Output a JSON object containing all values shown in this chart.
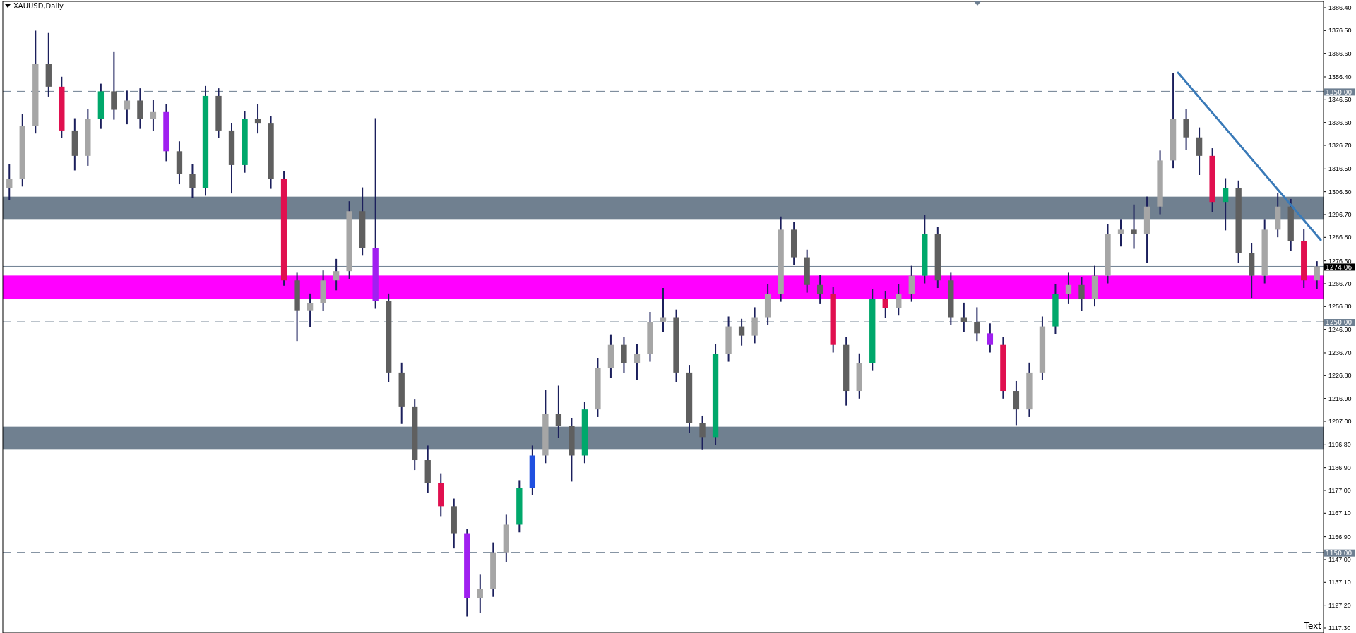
{
  "chart_data": {
    "type": "candlestick",
    "title": "XAUUSD,Daily",
    "annotations": [
      "Text"
    ],
    "categories": [
      null,
      null,
      null,
      null,
      null,
      null,
      null,
      null,
      null,
      null,
      null,
      null,
      null,
      null,
      null,
      null,
      null,
      null,
      null,
      null,
      null,
      null,
      null,
      null,
      null,
      null,
      null,
      null,
      null,
      null,
      null,
      null,
      null,
      null,
      null,
      null,
      null,
      null,
      null,
      null,
      null,
      null,
      null,
      null,
      null,
      null,
      null,
      null,
      null,
      null,
      null,
      null,
      null,
      null,
      null,
      null,
      null,
      null,
      null,
      null,
      null,
      null,
      null,
      null,
      null,
      null,
      null,
      null,
      null,
      null,
      null,
      null,
      null,
      null,
      null,
      null,
      null,
      null,
      null,
      null,
      null,
      null,
      null,
      null,
      null,
      null,
      null,
      null,
      null,
      null,
      null,
      null,
      null,
      null,
      null,
      null,
      null,
      null,
      null,
      null,
      null
    ],
    "ohlc": [
      [
        1308,
        1318,
        1303,
        1312
      ],
      [
        1312,
        1340,
        1309,
        1335
      ],
      [
        1335,
        1376,
        1332,
        1362
      ],
      [
        1362,
        1375,
        1348,
        1352
      ],
      [
        1352,
        1356,
        1330,
        1333
      ],
      [
        1333,
        1338,
        1316,
        1322
      ],
      [
        1322,
        1342,
        1318,
        1338
      ],
      [
        1338,
        1353,
        1334,
        1350
      ],
      [
        1350,
        1367,
        1338,
        1342
      ],
      [
        1342,
        1350,
        1336,
        1346
      ],
      [
        1346,
        1351,
        1334,
        1338
      ],
      [
        1338,
        1346,
        1333,
        1341
      ],
      [
        1341,
        1344,
        1320,
        1324
      ],
      [
        1324,
        1328,
        1310,
        1314
      ],
      [
        1314,
        1318,
        1304,
        1308
      ],
      [
        1308,
        1352,
        1305,
        1348
      ],
      [
        1348,
        1351,
        1330,
        1333
      ],
      [
        1333,
        1336,
        1306,
        1318
      ],
      [
        1318,
        1341,
        1315,
        1338
      ],
      [
        1338,
        1344,
        1332,
        1336
      ],
      [
        1336,
        1339,
        1308,
        1312
      ],
      [
        1312,
        1315,
        1266,
        1268
      ],
      [
        1268,
        1271,
        1242,
        1255
      ],
      [
        1255,
        1262,
        1248,
        1258
      ],
      [
        1258,
        1272,
        1255,
        1268
      ],
      [
        1268,
        1277,
        1264,
        1272
      ],
      [
        1272,
        1302,
        1269,
        1298
      ],
      [
        1298,
        1308,
        1279,
        1282
      ],
      [
        1282,
        1338,
        1256,
        1259
      ],
      [
        1259,
        1262,
        1224,
        1228
      ],
      [
        1228,
        1232,
        1206,
        1213
      ],
      [
        1213,
        1216,
        1186,
        1190
      ],
      [
        1190,
        1196,
        1176,
        1180
      ],
      [
        1180,
        1184,
        1166,
        1170
      ],
      [
        1170,
        1173,
        1152,
        1158
      ],
      [
        1158,
        1160,
        1122.5,
        1130
      ],
      [
        1130,
        1140,
        1124,
        1134
      ],
      [
        1134,
        1154,
        1131,
        1150
      ],
      [
        1150,
        1166,
        1146,
        1162
      ],
      [
        1162,
        1181,
        1159,
        1178
      ],
      [
        1178,
        1196,
        1175,
        1192
      ],
      [
        1192,
        1220,
        1189,
        1210
      ],
      [
        1210,
        1222,
        1200,
        1205
      ],
      [
        1205,
        1208,
        1181,
        1192
      ],
      [
        1192,
        1215,
        1189,
        1212
      ],
      [
        1212,
        1234,
        1209,
        1230
      ],
      [
        1230,
        1244,
        1226,
        1240
      ],
      [
        1240,
        1243,
        1228,
        1232
      ],
      [
        1232,
        1240,
        1225,
        1236
      ],
      [
        1236,
        1254,
        1233,
        1250
      ],
      [
        1250,
        1264.4,
        1246,
        1252
      ],
      [
        1252,
        1255,
        1224,
        1228
      ],
      [
        1228,
        1231,
        1202,
        1206
      ],
      [
        1206,
        1209,
        1195,
        1200
      ],
      [
        1200,
        1240,
        1197,
        1236
      ],
      [
        1236,
        1252,
        1233,
        1248
      ],
      [
        1248,
        1251,
        1240,
        1244
      ],
      [
        1244,
        1256,
        1241,
        1252
      ],
      [
        1252,
        1266,
        1249,
        1262
      ],
      [
        1262,
        1295.4,
        1259,
        1290
      ],
      [
        1290,
        1293,
        1275,
        1278
      ],
      [
        1278,
        1281,
        1263,
        1266
      ],
      [
        1266,
        1270,
        1258,
        1262
      ],
      [
        1262,
        1265,
        1237,
        1240
      ],
      [
        1240,
        1243,
        1214,
        1220
      ],
      [
        1220,
        1236,
        1217,
        1232
      ],
      [
        1232,
        1264,
        1229,
        1260
      ],
      [
        1260,
        1263,
        1252,
        1256
      ],
      [
        1256,
        1266,
        1253,
        1262
      ],
      [
        1262,
        1274,
        1259,
        1270
      ],
      [
        1270,
        1296,
        1267,
        1288
      ],
      [
        1288,
        1291,
        1265,
        1268
      ],
      [
        1268,
        1271,
        1249,
        1252
      ],
      [
        1252,
        1258,
        1246,
        1250
      ],
      [
        1250,
        1256,
        1242,
        1245
      ],
      [
        1245,
        1249,
        1237,
        1240
      ],
      [
        1240,
        1243,
        1217,
        1220
      ],
      [
        1220,
        1224,
        1205.5,
        1212
      ],
      [
        1212,
        1232,
        1209,
        1228
      ],
      [
        1228,
        1252,
        1225,
        1248
      ],
      [
        1248,
        1266,
        1245,
        1262
      ],
      [
        1262,
        1271,
        1258,
        1266
      ],
      [
        1266,
        1269,
        1255,
        1260
      ],
      [
        1260,
        1274,
        1257,
        1270
      ],
      [
        1270,
        1292,
        1267,
        1288
      ],
      [
        1288,
        1294,
        1283,
        1290
      ],
      [
        1290,
        1300.6,
        1282,
        1288
      ],
      [
        1288,
        1304,
        1276,
        1300
      ],
      [
        1300,
        1324,
        1297,
        1320
      ],
      [
        1320,
        1357.6,
        1317,
        1338
      ],
      [
        1338,
        1342,
        1325,
        1330
      ],
      [
        1330,
        1334,
        1314,
        1322
      ],
      [
        1322,
        1325,
        1298,
        1302
      ],
      [
        1302,
        1312,
        1290,
        1308
      ],
      [
        1308,
        1311,
        1276,
        1280
      ],
      [
        1280,
        1284,
        1260.7,
        1270
      ],
      [
        1270,
        1294,
        1267,
        1290
      ],
      [
        1290,
        1305.7,
        1287,
        1300
      ],
      [
        1300,
        1303,
        1281,
        1285
      ],
      [
        1285,
        1290,
        1265,
        1268
      ],
      [
        1268,
        1276,
        1264.4,
        1274.06
      ]
    ],
    "colors": [
      "#a6a6a6",
      "#a6a6a6",
      "#a6a6a6",
      "#5f5f5f",
      "#e0104f",
      "#5f5f5f",
      "#a6a6a6",
      "#00a86b",
      "#5f5f5f",
      "#a6a6a6",
      "#5f5f5f",
      "#a6a6a6",
      "#a020f0",
      "#5f5f5f",
      "#5f5f5f",
      "#00a86b",
      "#5f5f5f",
      "#5f5f5f",
      "#00a86b",
      "#5f5f5f",
      "#5f5f5f",
      "#e0104f",
      "#5f5f5f",
      "#a6a6a6",
      "#a6a6a6",
      "#a6a6a6",
      "#a6a6a6",
      "#5f5f5f",
      "#a020f0",
      "#5f5f5f",
      "#5f5f5f",
      "#5f5f5f",
      "#5f5f5f",
      "#e0104f",
      "#5f5f5f",
      "#a020f0",
      "#a6a6a6",
      "#a6a6a6",
      "#a6a6a6",
      "#00a86b",
      "#2050e0",
      "#a6a6a6",
      "#5f5f5f",
      "#5f5f5f",
      "#00a86b",
      "#a6a6a6",
      "#a6a6a6",
      "#5f5f5f",
      "#a6a6a6",
      "#a6a6a6",
      "#a6a6a6",
      "#5f5f5f",
      "#5f5f5f",
      "#5f5f5f",
      "#00a86b",
      "#a6a6a6",
      "#5f5f5f",
      "#a6a6a6",
      "#a6a6a6",
      "#a6a6a6",
      "#5f5f5f",
      "#5f5f5f",
      "#5f5f5f",
      "#e0104f",
      "#5f5f5f",
      "#a6a6a6",
      "#00a86b",
      "#e0104f",
      "#a6a6a6",
      "#a6a6a6",
      "#00a86b",
      "#5f5f5f",
      "#5f5f5f",
      "#5f5f5f",
      "#5f5f5f",
      "#a020f0",
      "#e0104f",
      "#5f5f5f",
      "#a6a6a6",
      "#a6a6a6",
      "#00a86b",
      "#a6a6a6",
      "#5f5f5f",
      "#a6a6a6",
      "#a6a6a6",
      "#a6a6a6",
      "#5f5f5f",
      "#a6a6a6",
      "#a6a6a6",
      "#a6a6a6",
      "#5f5f5f",
      "#5f5f5f",
      "#e0104f",
      "#00a86b",
      "#5f5f5f",
      "#5f5f5f",
      "#a6a6a6",
      "#a6a6a6",
      "#5f5f5f",
      "#e0104f",
      "#a6a6a6"
    ],
    "ylim": [
      1115,
      1389
    ],
    "yticks": [
      {
        "value": 1386.4,
        "label": "1386.40"
      },
      {
        "value": 1376.5,
        "label": "1376.50"
      },
      {
        "value": 1366.6,
        "label": "1366.60"
      },
      {
        "value": 1356.4,
        "label": "1356.40"
      },
      {
        "value": 1346.5,
        "label": "1346.50"
      },
      {
        "value": 1336.6,
        "label": "1336.60"
      },
      {
        "value": 1326.7,
        "label": "1326.70"
      },
      {
        "value": 1316.5,
        "label": "1316.50"
      },
      {
        "value": 1306.6,
        "label": "1306.60"
      },
      {
        "value": 1296.7,
        "label": "1296.70"
      },
      {
        "value": 1286.8,
        "label": "1286.80"
      },
      {
        "value": 1276.6,
        "label": "1276.60"
      },
      {
        "value": 1266.7,
        "label": "1266.70"
      },
      {
        "value": 1256.8,
        "label": "1256.80"
      },
      {
        "value": 1246.9,
        "label": "1246.90"
      },
      {
        "value": 1236.7,
        "label": "1236.70"
      },
      {
        "value": 1226.8,
        "label": "1226.80"
      },
      {
        "value": 1216.9,
        "label": "1216.90"
      },
      {
        "value": 1207,
        "label": "1207.00"
      },
      {
        "value": 1196.8,
        "label": "1196.80"
      },
      {
        "value": 1186.9,
        "label": "1186.90"
      },
      {
        "value": 1177,
        "label": "1177.00"
      },
      {
        "value": 1167.1,
        "label": "1167.10"
      },
      {
        "value": 1156.9,
        "label": "1156.90"
      },
      {
        "value": 1147,
        "label": "1147.00"
      },
      {
        "value": 1137.1,
        "label": "1137.10"
      },
      {
        "value": 1127.2,
        "label": "1127.20"
      },
      {
        "value": 1117.3,
        "label": "1117.30"
      }
    ],
    "tick_labels": "y",
    "ref_lines": [
      {
        "axis": "y",
        "value": 1350,
        "label": "1350.00",
        "line_style": "dashed",
        "color": "#6e7f91"
      },
      {
        "axis": "y",
        "value": 1250,
        "label": "1250.00",
        "line_style": "dashed",
        "color": "#6e7f91"
      },
      {
        "axis": "y",
        "value": 1150,
        "label": "1150.00",
        "line_style": "dashed",
        "color": "#6e7f91"
      },
      {
        "axis": "y",
        "value": 1274.06,
        "label": "1274.06",
        "line_style": "solid",
        "color": "#6e7f91"
      }
    ],
    "bands": [
      {
        "axis": "y",
        "from": 1294.3,
        "to": 1304.3,
        "color": "#708090"
      },
      {
        "axis": "y",
        "from": 1194.8,
        "to": 1204.5,
        "color": "#708090"
      },
      {
        "axis": "y",
        "from": 1259.8,
        "to": 1270.1,
        "color": "#ff00ff"
      }
    ]
  }
}
